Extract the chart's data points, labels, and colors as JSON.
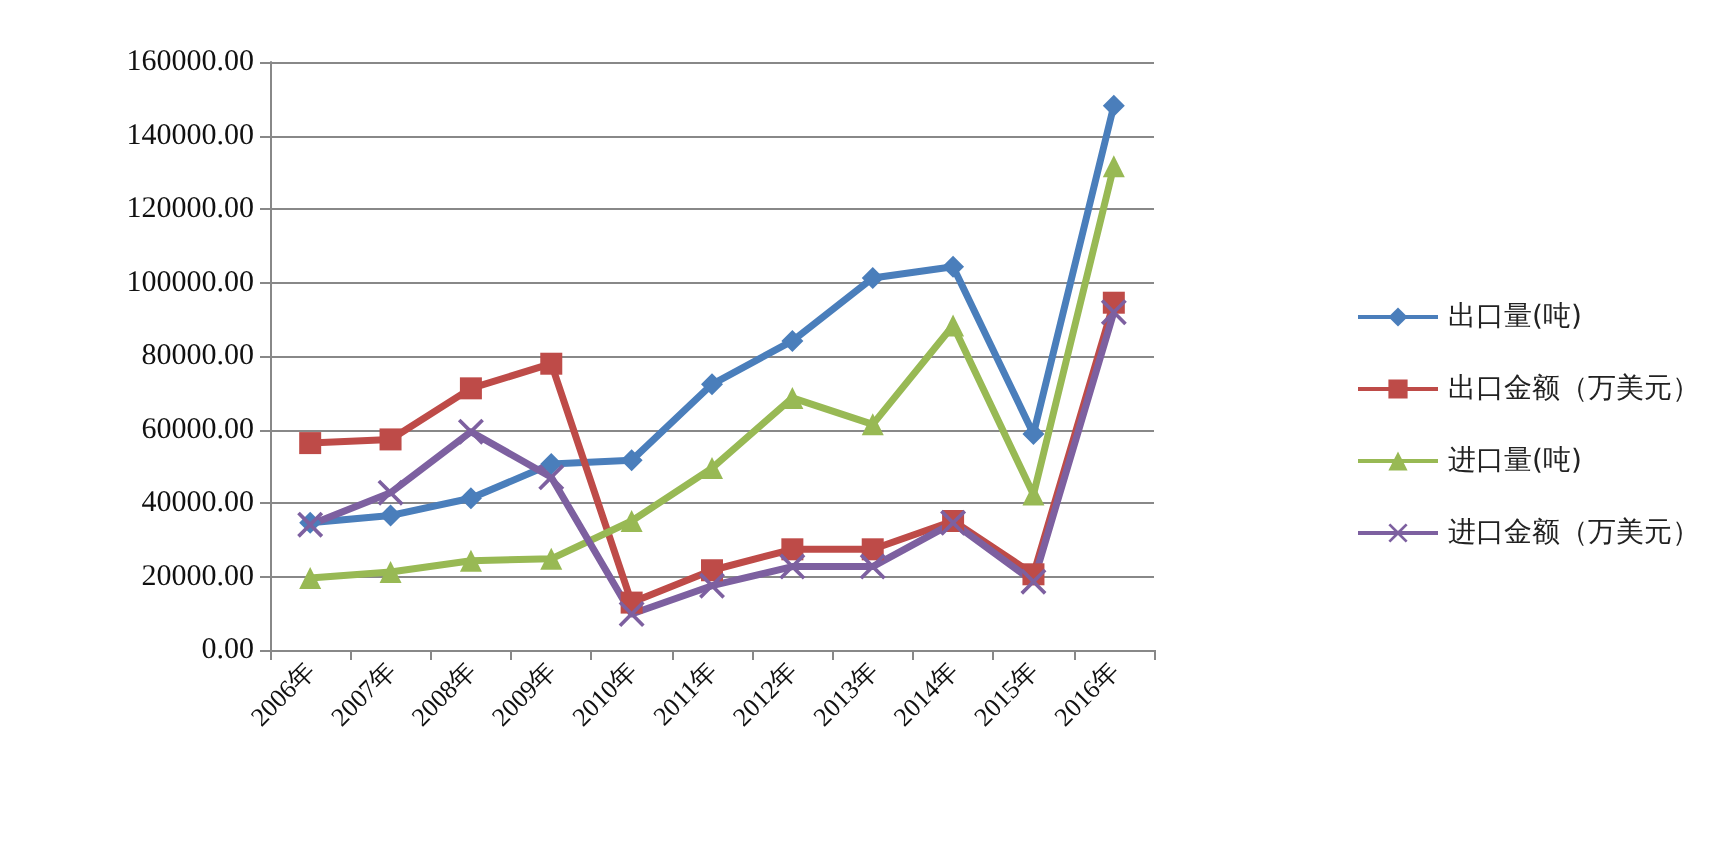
{
  "chart_data": {
    "type": "line",
    "categories": [
      "2006年",
      "2007年",
      "2008年",
      "2009年",
      "2010年",
      "2011年",
      "2012年",
      "2013年",
      "2014年",
      "2015年",
      "2016年"
    ],
    "series": [
      {
        "name": "出口量(吨)",
        "color": "#4a7ebb",
        "marker": "diamond",
        "values": [
          34600,
          36600,
          41300,
          50600,
          51600,
          72300,
          84100,
          101200,
          104300,
          58800,
          148100
        ]
      },
      {
        "name": "出口金额（万美元）",
        "color": "#be4b48",
        "marker": "square",
        "values": [
          56300,
          57300,
          71200,
          77900,
          12900,
          21700,
          27400,
          27400,
          35100,
          20600,
          94500
        ]
      },
      {
        "name": "进口量(吨)",
        "color": "#98b954",
        "marker": "triangle",
        "values": [
          19600,
          21200,
          24300,
          24800,
          35100,
          49500,
          68600,
          61400,
          88300,
          42300,
          131600
        ]
      },
      {
        "name": "进口金额（万美元）",
        "color": "#7d60a0",
        "marker": "cross",
        "values": [
          34100,
          42800,
          59400,
          47000,
          9800,
          17500,
          22700,
          22700,
          34600,
          18600,
          91900
        ]
      }
    ],
    "ylim": [
      0,
      160000
    ],
    "yticks": [
      {
        "value": 0,
        "label": "0.00"
      },
      {
        "value": 20000,
        "label": "20000.00"
      },
      {
        "value": 40000,
        "label": "40000.00"
      },
      {
        "value": 60000,
        "label": "60000.00"
      },
      {
        "value": 80000,
        "label": "80000.00"
      },
      {
        "value": 100000,
        "label": "100000.00"
      },
      {
        "value": 120000,
        "label": "120000.00"
      },
      {
        "value": 140000,
        "label": "140000.00"
      },
      {
        "value": 160000,
        "label": "160000.00"
      }
    ],
    "grid": "y",
    "legend": "right",
    "line_style": "solid"
  }
}
